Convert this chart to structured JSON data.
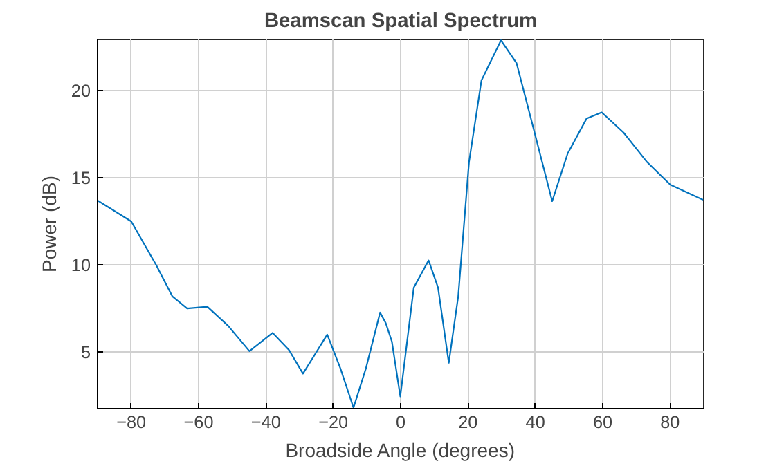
{
  "chart_data": {
    "type": "line",
    "title": "Beamscan Spatial Spectrum",
    "xlabel": "Broadside Angle (degrees)",
    "ylabel": "Power (dB)",
    "xlim": [
      -90,
      90
    ],
    "ylim": [
      1.75,
      22.95
    ],
    "xticks": [
      -80,
      -60,
      -40,
      -20,
      0,
      20,
      40,
      60,
      80
    ],
    "yticks": [
      5,
      10,
      15,
      20
    ],
    "grid": true,
    "series": [
      {
        "color": "#0072bd",
        "x": [
          -90,
          -80,
          -72.6,
          -67.8,
          -63.4,
          -57.4,
          -51.2,
          -44.9,
          -38,
          -33.1,
          -29,
          -21.8,
          -17.9,
          -14,
          -10.3,
          -6.1,
          -4.4,
          -2.6,
          -0.1,
          3.9,
          8.3,
          11.1,
          14.3,
          17.1,
          20.3,
          24,
          29.8,
          34.4,
          39.9,
          45,
          49.6,
          55.2,
          59.7,
          66.2,
          73.2,
          80.1,
          89.8
        ],
        "values": [
          13.7,
          12.5,
          10.0,
          8.2,
          7.5,
          7.6,
          6.5,
          5.05,
          6.1,
          5.1,
          3.76,
          6.0,
          4.07,
          1.8,
          4.07,
          7.27,
          6.65,
          5.6,
          2.45,
          8.7,
          10.26,
          8.7,
          4.38,
          8.2,
          15.9,
          20.6,
          22.9,
          21.6,
          17.5,
          13.66,
          16.4,
          18.4,
          18.76,
          17.6,
          15.9,
          14.6,
          13.74
        ]
      }
    ]
  }
}
